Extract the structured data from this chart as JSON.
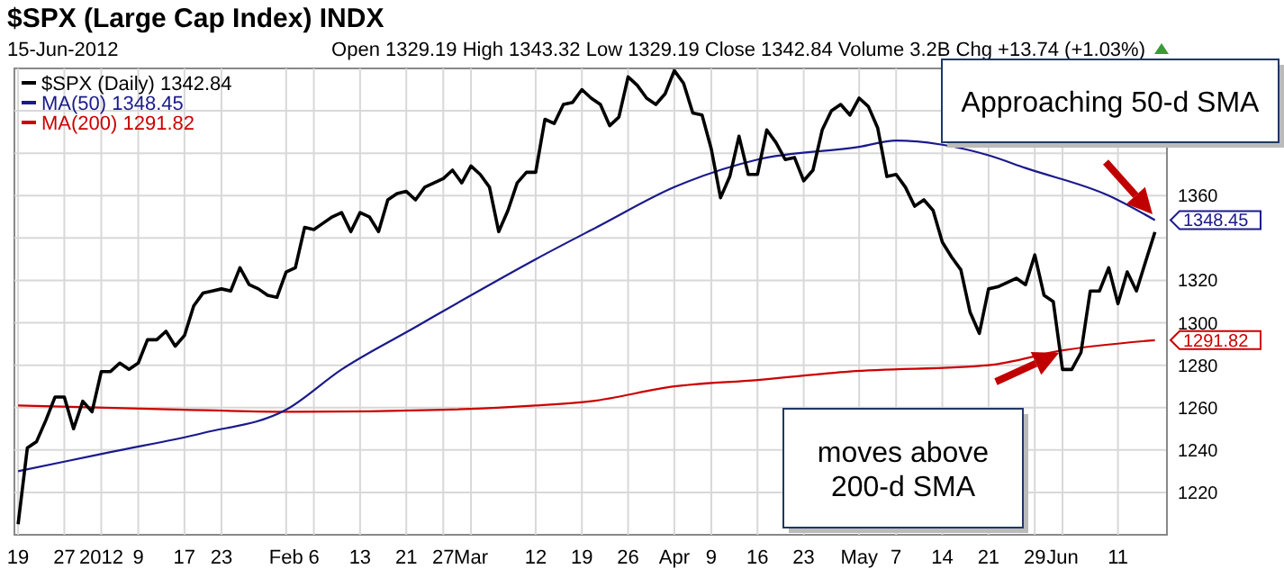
{
  "chart_data": {
    "type": "line",
    "title": "$SPX (Large Cap Index) INDX",
    "subtitle": "15-Jun-2012",
    "annotations": [
      "Open 1329.19  High 1343.32  Low 1329.19  Close 1342.84  Volume 3.2B  Chg +13.74 (+1.03%)",
      "Approaching 50-d SMA",
      "moves above 200-d SMA"
    ],
    "categories": [
      "19",
      null,
      null,
      null,
      null,
      "27",
      null,
      null,
      null,
      "2012",
      null,
      null,
      null,
      "9",
      null,
      null,
      null,
      null,
      "17",
      null,
      null,
      null,
      "23",
      null,
      null,
      null,
      null,
      null,
      null,
      "Feb",
      null,
      null,
      "6",
      null,
      null,
      null,
      null,
      "13",
      null,
      null,
      null,
      null,
      "21",
      null,
      null,
      null,
      "27",
      null,
      null,
      "Mar",
      null,
      null,
      null,
      null,
      null,
      null,
      "12",
      null,
      null,
      null,
      null,
      "19",
      null,
      null,
      null,
      null,
      "26",
      null,
      null,
      null,
      null,
      "Apr",
      null,
      null,
      null,
      "9",
      null,
      null,
      null,
      null,
      "16",
      null,
      null,
      null,
      null,
      "23",
      null,
      null,
      null,
      null,
      null,
      "May",
      null,
      null,
      null,
      "7",
      null,
      null,
      null,
      null,
      "14",
      null,
      null,
      null,
      null,
      "21",
      null,
      null,
      null,
      null,
      "29",
      null,
      null,
      "Jun",
      null,
      null,
      null,
      null,
      null,
      "11",
      null,
      null,
      null,
      null
    ],
    "ylim": [
      1200,
      1420
    ],
    "yticks": [
      1220,
      1240,
      1260,
      1280,
      1300,
      1320,
      {
        "value": 1340,
        "label": null
      },
      1360,
      {
        "value": 1380,
        "label": null
      },
      {
        "value": 1400,
        "label": null
      }
    ],
    "grid": true,
    "legend": "top left",
    "series": [
      {
        "name": "$SPX (Daily) 1342.84",
        "color": "#000000",
        "values": [
          1205,
          1241,
          1244,
          1254,
          1265,
          1265,
          1250,
          1263,
          1258,
          1277,
          1277,
          1281,
          1278,
          1281,
          1292,
          1292,
          1296,
          1289,
          1294,
          1308,
          1314,
          1315,
          1316,
          1315,
          1326,
          1318,
          1316,
          1313,
          1312,
          1324,
          1326,
          1345,
          1344,
          1347,
          1350,
          1352,
          1343,
          1352,
          1350,
          1343,
          1358,
          1361,
          1362,
          1358,
          1364,
          1366,
          1368,
          1372,
          1366,
          1374,
          1370,
          1364,
          1343,
          1353,
          1366,
          1371,
          1371,
          1396,
          1394,
          1403,
          1404,
          1410,
          1406,
          1403,
          1393,
          1397,
          1416,
          1412,
          1406,
          1403,
          1408,
          1419,
          1413,
          1399,
          1398,
          1382,
          1359,
          1369,
          1388,
          1370,
          1370,
          1391,
          1385,
          1377,
          1378,
          1367,
          1372,
          1391,
          1400,
          1403,
          1398,
          1406,
          1402,
          1392,
          1369,
          1370,
          1364,
          1355,
          1358,
          1353,
          1338,
          1331,
          1325,
          1305,
          1295,
          1316,
          1317,
          1319,
          1321,
          1318,
          1332,
          1313,
          1310,
          1278,
          1278,
          1286,
          1315,
          1315,
          1326,
          1309,
          1324,
          1315,
          1329,
          1342.84
        ]
      },
      {
        "name": "MA(50) 1348.45",
        "color": "#1a1a8c",
        "values": [
          1230,
          null,
          null,
          null,
          null,
          null,
          null,
          null,
          null,
          null,
          1239,
          null,
          null,
          null,
          null,
          null,
          null,
          null,
          null,
          null,
          1248,
          null,
          null,
          null,
          null,
          null,
          null,
          null,
          null,
          1259,
          null,
          null,
          null,
          null,
          null,
          1278,
          null,
          null,
          null,
          null,
          null,
          null,
          null,
          1298,
          null,
          null,
          null,
          null,
          null,
          1313,
          null,
          null,
          null,
          null,
          null,
          null,
          1330,
          null,
          null,
          null,
          null,
          null,
          null,
          1346,
          null,
          null,
          null,
          null,
          null,
          null,
          null,
          1364,
          null,
          null,
          null,
          null,
          null,
          null,
          null,
          null,
          1377,
          null,
          null,
          null,
          null,
          null,
          null,
          null,
          null,
          null,
          null,
          1383,
          null,
          null,
          null,
          1386,
          null,
          null,
          null,
          null,
          1384,
          null,
          null,
          null,
          null,
          1379,
          null,
          null,
          null,
          1373,
          null,
          null,
          null,
          null,
          null,
          null,
          null,
          null,
          1360,
          null,
          null,
          null,
          null,
          1348.45
        ],
        "value_labels": [
          null,
          null,
          null,
          null,
          null,
          null,
          null,
          null,
          null,
          null,
          null,
          null,
          null,
          null,
          null,
          null,
          null,
          null,
          null,
          null,
          null,
          null,
          null,
          null,
          null,
          null,
          null,
          null,
          null,
          null,
          null,
          null,
          null,
          null,
          null,
          null,
          null,
          null,
          null,
          null,
          null,
          null,
          null,
          null,
          null,
          null,
          null,
          null,
          null,
          null,
          null,
          null,
          null,
          null,
          null,
          null,
          null,
          null,
          null,
          null,
          null,
          null,
          null,
          null,
          null,
          null,
          null,
          null,
          null,
          null,
          null,
          null,
          null,
          null,
          null,
          null,
          null,
          null,
          null,
          null,
          null,
          null,
          null,
          null,
          null,
          null,
          null,
          null,
          null,
          null,
          null,
          null,
          null,
          null,
          null,
          null,
          null,
          null,
          null,
          null,
          null,
          null,
          null,
          null,
          null,
          null,
          null,
          null,
          null,
          null,
          null,
          null,
          null,
          null,
          null,
          null,
          null,
          null,
          null,
          null,
          null,
          null,
          null,
          "1348.45"
        ]
      },
      {
        "name": "MA(200) 1291.82",
        "color": "#cc0000",
        "values": [
          1261,
          null,
          null,
          null,
          null,
          null,
          null,
          null,
          null,
          null,
          null,
          null,
          null,
          null,
          null,
          null,
          null,
          null,
          1259,
          null,
          null,
          null,
          null,
          null,
          null,
          null,
          null,
          null,
          null,
          null,
          1258,
          null,
          null,
          null,
          null,
          null,
          null,
          null,
          null,
          null,
          null,
          null,
          null,
          null,
          null,
          null,
          1259,
          null,
          null,
          null,
          null,
          null,
          null,
          null,
          null,
          null,
          1261,
          null,
          null,
          null,
          null,
          null,
          1263,
          null,
          null,
          null,
          null,
          null,
          null,
          null,
          null,
          1270,
          null,
          null,
          null,
          null,
          null,
          null,
          null,
          null,
          1273,
          null,
          null,
          null,
          null,
          null,
          null,
          null,
          null,
          null,
          1277,
          null,
          null,
          null,
          null,
          null,
          null,
          null,
          null,
          null,
          null,
          null,
          null,
          null,
          null,
          1280,
          null,
          null,
          null,
          null,
          null,
          null,
          null,
          1287,
          null,
          null,
          null,
          null,
          null,
          null,
          null,
          null,
          null,
          1291.82
        ],
        "value_labels": [
          null,
          null,
          null,
          null,
          null,
          null,
          null,
          null,
          null,
          null,
          null,
          null,
          null,
          null,
          null,
          null,
          null,
          null,
          null,
          null,
          null,
          null,
          null,
          null,
          null,
          null,
          null,
          null,
          null,
          null,
          null,
          null,
          null,
          null,
          null,
          null,
          null,
          null,
          null,
          null,
          null,
          null,
          null,
          null,
          null,
          null,
          null,
          null,
          null,
          null,
          null,
          null,
          null,
          null,
          null,
          null,
          null,
          null,
          null,
          null,
          null,
          null,
          null,
          null,
          null,
          null,
          null,
          null,
          null,
          null,
          null,
          null,
          null,
          null,
          null,
          null,
          null,
          null,
          null,
          null,
          null,
          null,
          null,
          null,
          null,
          null,
          null,
          null,
          null,
          null,
          null,
          null,
          null,
          null,
          null,
          null,
          null,
          null,
          null,
          null,
          null,
          null,
          null,
          null,
          null,
          null,
          null,
          null,
          null,
          null,
          null,
          null,
          null,
          null,
          null,
          null,
          null,
          null,
          null,
          null,
          null,
          null,
          null,
          "1291.82"
        ]
      }
    ]
  }
}
